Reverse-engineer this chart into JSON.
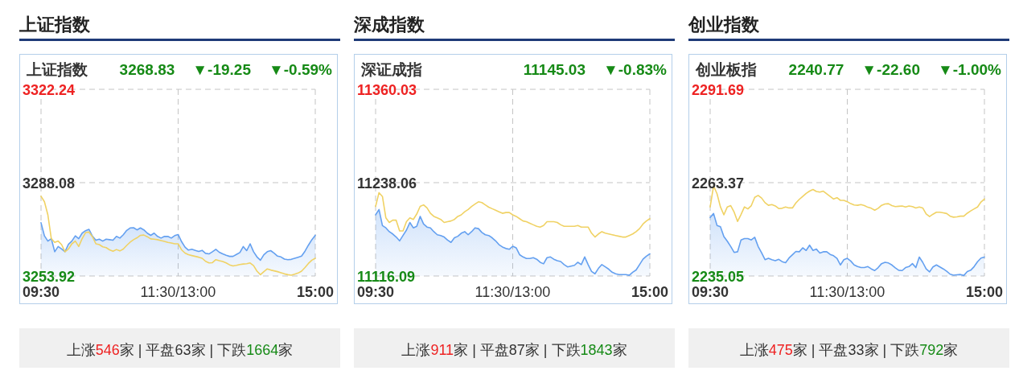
{
  "chart_data": [
    {
      "type": "line",
      "title": "上证指数",
      "subtitle": "上证指数",
      "annotations": [
        "3268.83",
        "▼-19.25",
        "▼-0.59%",
        "上涨546家 | 平盘63家 | 下跌1664家"
      ],
      "categories": [
        "09:30",
        null,
        null,
        null,
        null,
        null,
        null,
        null,
        null,
        null,
        null,
        null,
        null,
        null,
        null,
        null,
        null,
        null,
        null,
        null,
        null,
        null,
        null,
        null,
        null,
        null,
        null,
        null,
        null,
        null,
        null,
        null,
        null,
        null,
        null,
        null,
        null,
        null,
        null,
        null,
        "11:30/13:00",
        null,
        null,
        null,
        null,
        null,
        null,
        null,
        null,
        null,
        null,
        null,
        null,
        null,
        null,
        null,
        null,
        null,
        null,
        null,
        null,
        null,
        null,
        null,
        null,
        null,
        null,
        null,
        null,
        null,
        null,
        null,
        null,
        null,
        null,
        null,
        null,
        null,
        null,
        null,
        "15:00"
      ],
      "ylim": [
        3253.92,
        3322.24
      ],
      "yticks": [
        3253.92,
        3288.08,
        3322.24
      ],
      "grid": true,
      "series": [
        {
          "type": "area",
          "color": "#64a0f0",
          "values": [
            3273.4,
            3268.6,
            3266.7,
            3267.6,
            3262.8,
            3264.7,
            3263.8,
            3262.8,
            3265.5,
            3266.7,
            3268.6,
            3267.6,
            3269.6,
            3270.5,
            3271.0,
            3268.5,
            3267.0,
            3267.4,
            3266.7,
            3267.4,
            3267.2,
            3267.0,
            3268.4,
            3267.8,
            3269.0,
            3270.6,
            3271.5,
            3271.6,
            3270.8,
            3271.5,
            3270.8,
            3269.6,
            3268.8,
            3269.6,
            3268.4,
            3267.8,
            3268.4,
            3268.4,
            3267.8,
            3268.7,
            3269.1,
            3266.5,
            3264.5,
            3263.4,
            3263.7,
            3263.3,
            3262.9,
            3263.3,
            3262.2,
            3262.0,
            3262.8,
            3263.7,
            3262.6,
            3262.0,
            3261.5,
            3261.1,
            3261.1,
            3261.8,
            3262.5,
            3264.7,
            3263.2,
            3265.7,
            3262.8,
            3260.9,
            3259.7,
            3261.7,
            3262.8,
            3263.2,
            3262.3,
            3261.2,
            3260.9,
            3260.1,
            3259.9,
            3260.0,
            3260.4,
            3260.8,
            3261.2,
            3263.0,
            3265.2,
            3267.2,
            3268.8
          ]
        },
        {
          "type": "line",
          "color": "#f0d264",
          "values": [
            3283.1,
            3281.1,
            3276.3,
            3267.6,
            3266.2,
            3266.7,
            3265.4,
            3262.8,
            3263.8,
            3265.7,
            3266.7,
            3264.7,
            3267.6,
            3269.8,
            3270.0,
            3268.3,
            3265.7,
            3265.4,
            3264.6,
            3264.3,
            3263.5,
            3263.0,
            3263.6,
            3263.1,
            3263.8,
            3265.1,
            3266.3,
            3267.2,
            3267.9,
            3268.8,
            3268.9,
            3268.3,
            3267.5,
            3267.4,
            3267.2,
            3266.9,
            3266.6,
            3266.2,
            3266.0,
            3265.7,
            3265.7,
            3263.5,
            3262.3,
            3261.7,
            3261.4,
            3261.1,
            3260.8,
            3260.4,
            3259.3,
            3258.7,
            3258.8,
            3259.9,
            3259.5,
            3259.2,
            3258.7,
            3258.0,
            3257.6,
            3257.8,
            3258.1,
            3258.3,
            3258.4,
            3258.7,
            3257.7,
            3255.7,
            3254.4,
            3255.5,
            3256.5,
            3256.1,
            3255.8,
            3255.5,
            3255.1,
            3254.7,
            3254.4,
            3254.2,
            3254.6,
            3255.0,
            3255.7,
            3257.0,
            3258.5,
            3259.7,
            3260.4
          ]
        }
      ]
    },
    {
      "type": "line",
      "title": "深成指数",
      "subtitle": "深证成指",
      "annotations": [
        "11145.03",
        "▼-0.83%",
        "上涨911家 | 平盘87家 | 下跌1843家"
      ],
      "categories": [
        "09:30",
        null,
        null,
        null,
        null,
        null,
        null,
        null,
        null,
        null,
        null,
        null,
        null,
        null,
        null,
        null,
        null,
        null,
        null,
        null,
        null,
        null,
        null,
        null,
        null,
        null,
        null,
        null,
        null,
        null,
        null,
        null,
        null,
        null,
        null,
        null,
        null,
        null,
        null,
        null,
        "11:30/13:00",
        null,
        null,
        null,
        null,
        null,
        null,
        null,
        null,
        null,
        null,
        null,
        null,
        null,
        null,
        null,
        null,
        null,
        null,
        null,
        null,
        null,
        null,
        null,
        null,
        null,
        null,
        null,
        null,
        null,
        null,
        null,
        null,
        null,
        null,
        null,
        null,
        null,
        null,
        null,
        "15:00"
      ],
      "ylim": [
        11116.09,
        11360.03
      ],
      "yticks": [
        11116.09,
        11238.06,
        11360.03
      ],
      "grid": true,
      "series": [
        {
          "type": "area",
          "color": "#64a0f0",
          "values": [
            11196,
            11203,
            11182,
            11179,
            11174,
            11171,
            11167,
            11162,
            11169,
            11176,
            11186,
            11179,
            11181,
            11194,
            11184,
            11180,
            11179,
            11174,
            11170,
            11169,
            11167,
            11163,
            11160,
            11166,
            11168,
            11172,
            11174,
            11170,
            11174,
            11179,
            11178,
            11173,
            11170,
            11169,
            11166,
            11162,
            11157,
            11154,
            11152,
            11151,
            11155,
            11153,
            11144,
            11141,
            11139,
            11139,
            11140,
            11138,
            11134,
            11132,
            11140,
            11141,
            11138,
            11136,
            11135,
            11131,
            11128,
            11129,
            11130,
            11134,
            11131,
            11141,
            11131,
            11122,
            11119,
            11126,
            11131,
            11128,
            11125,
            11121,
            11119,
            11118,
            11118,
            11118,
            11117,
            11121,
            11124,
            11131,
            11138,
            11142,
            11145
          ]
        },
        {
          "type": "line",
          "color": "#f0d264",
          "values": [
            11207,
            11225,
            11220,
            11192,
            11186,
            11189,
            11189,
            11175,
            11175,
            11187,
            11192,
            11190,
            11197,
            11207,
            11209,
            11205,
            11198,
            11194,
            11192,
            11190,
            11186,
            11187,
            11188,
            11190,
            11194,
            11196,
            11200,
            11203,
            11207,
            11210,
            11213,
            11212,
            11209,
            11206,
            11204,
            11202,
            11200,
            11198,
            11199,
            11199,
            11196,
            11194,
            11191,
            11188,
            11187,
            11185,
            11183,
            11181,
            11180,
            11182,
            11187,
            11187,
            11187,
            11186,
            11183,
            11181,
            11181,
            11181,
            11181,
            11182,
            11180,
            11180,
            11180,
            11172,
            11167,
            11171,
            11174,
            11172,
            11171,
            11170,
            11169,
            11168,
            11167,
            11167,
            11169,
            11171,
            11174,
            11178,
            11184,
            11188,
            11191
          ]
        }
      ]
    },
    {
      "type": "line",
      "title": "创业指数",
      "subtitle": "创业板指",
      "annotations": [
        "2240.77",
        "▼-22.60",
        "▼-1.00%",
        "上涨475家 | 平盘33家 | 下跌792家"
      ],
      "categories": [
        "09:30",
        null,
        null,
        null,
        null,
        null,
        null,
        null,
        null,
        null,
        null,
        null,
        null,
        null,
        null,
        null,
        null,
        null,
        null,
        null,
        null,
        null,
        null,
        null,
        null,
        null,
        null,
        null,
        null,
        null,
        null,
        null,
        null,
        null,
        null,
        null,
        null,
        null,
        null,
        null,
        "11:30/13:00",
        null,
        null,
        null,
        null,
        null,
        null,
        null,
        null,
        null,
        null,
        null,
        null,
        null,
        null,
        null,
        null,
        null,
        null,
        null,
        null,
        null,
        null,
        null,
        null,
        null,
        null,
        null,
        null,
        null,
        null,
        null,
        null,
        null,
        null,
        null,
        null,
        null,
        null,
        null,
        "15:00"
      ],
      "ylim": [
        2235.05,
        2291.69
      ],
      "yticks": [
        2235.05,
        2263.37,
        2291.69
      ],
      "grid": true,
      "series": [
        {
          "type": "area",
          "color": "#64a0f0",
          "values": [
            2252.8,
            2254.0,
            2250.4,
            2250.0,
            2247.0,
            2245.6,
            2244.0,
            2242.2,
            2242.4,
            2246.0,
            2246.4,
            2246.4,
            2246.0,
            2246.8,
            2244.0,
            2242.1,
            2240.0,
            2240.4,
            2240.0,
            2239.7,
            2240.1,
            2239.4,
            2239.1,
            2240.5,
            2241.5,
            2242.5,
            2242.4,
            2243.6,
            2242.8,
            2244.4,
            2242.8,
            2243.2,
            2242.0,
            2242.4,
            2242.4,
            2241.6,
            2241.2,
            2240.4,
            2238.4,
            2240.0,
            2240.4,
            2239.6,
            2238.4,
            2237.9,
            2237.6,
            2237.6,
            2237.9,
            2237.2,
            2236.7,
            2237.6,
            2238.8,
            2239.2,
            2239.0,
            2238.4,
            2237.5,
            2236.8,
            2236.7,
            2237.6,
            2237.9,
            2238.8,
            2237.6,
            2240.8,
            2239.2,
            2237.2,
            2236.3,
            2237.8,
            2238.4,
            2237.8,
            2237.2,
            2236.5,
            2235.6,
            2235.3,
            2235.4,
            2235.5,
            2235.2,
            2236.4,
            2236.8,
            2237.9,
            2239.4,
            2240.5,
            2240.8
          ]
        },
        {
          "type": "line",
          "color": "#f0d264",
          "values": [
            2256.0,
            2262.4,
            2260.0,
            2256.0,
            2253.6,
            2256.0,
            2256.4,
            2254.4,
            2251.6,
            2253.7,
            2256.0,
            2255.4,
            2256.4,
            2258.9,
            2259.5,
            2258.7,
            2257.3,
            2256.5,
            2256.7,
            2256.3,
            2255.5,
            2255.6,
            2256.0,
            2255.7,
            2255.7,
            2257.2,
            2258.3,
            2259.2,
            2260.1,
            2260.8,
            2261.3,
            2260.7,
            2260.5,
            2260.8,
            2260.0,
            2259.2,
            2258.4,
            2258.8,
            2258.0,
            2258.0,
            2257.6,
            2257.0,
            2256.6,
            2256.5,
            2256.7,
            2256.4,
            2255.9,
            2255.6,
            2255.0,
            2255.6,
            2256.5,
            2256.9,
            2257.0,
            2256.4,
            2256.1,
            2256.2,
            2256.3,
            2256.0,
            2256.3,
            2256.1,
            2255.7,
            2256.0,
            2255.7,
            2253.9,
            2253.1,
            2253.8,
            2254.4,
            2254.4,
            2254.2,
            2254.0,
            2253.2,
            2252.9,
            2253.0,
            2253.2,
            2253.2,
            2254.1,
            2254.8,
            2255.4,
            2256.0,
            2257.5,
            2258.4
          ]
        }
      ]
    }
  ]
}
